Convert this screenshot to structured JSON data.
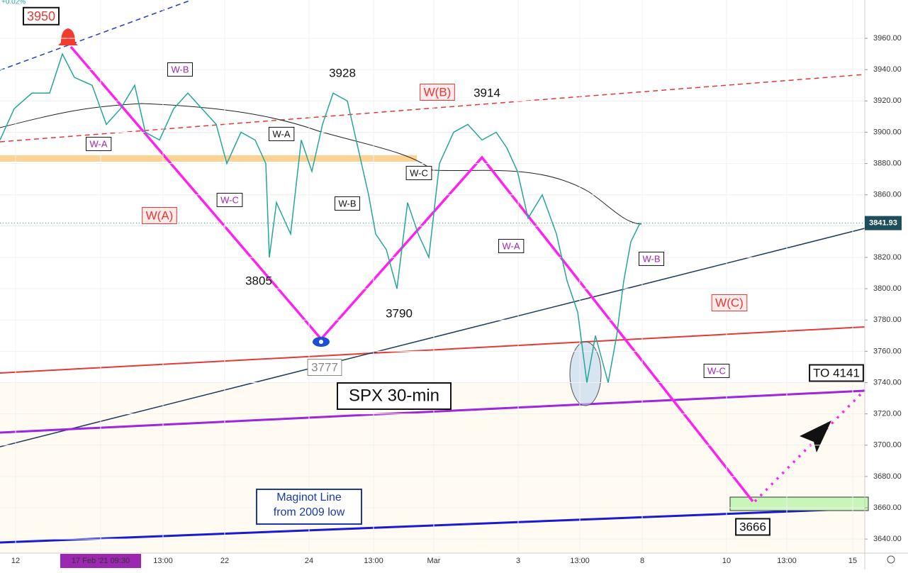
{
  "chart_data": {
    "type": "line",
    "title": "SPX 30-min",
    "top_note": "+0.02%",
    "ylim": [
      3631,
      3984.5
    ],
    "yticks": [
      {
        "value": 3640,
        "label": "3640.00"
      },
      {
        "value": 3660,
        "label": "3660.00"
      },
      {
        "value": 3680,
        "label": "3680.00"
      },
      {
        "value": 3700,
        "label": "3700.00"
      },
      {
        "value": 3720,
        "label": "3720.00"
      },
      {
        "value": 3740,
        "label": "3740.00"
      },
      {
        "value": 3760,
        "label": "3760.00"
      },
      {
        "value": 3780,
        "label": "3780.00"
      },
      {
        "value": 3800,
        "label": "3800.00"
      },
      {
        "value": 3820,
        "label": "3820.00"
      },
      {
        "value": 3840,
        "label": "3840.00"
      },
      {
        "value": 3860,
        "label": "3860.00"
      },
      {
        "value": 3880,
        "label": "3880.00"
      },
      {
        "value": 3900,
        "label": "3900.00"
      },
      {
        "value": 3920,
        "label": "3920.00"
      },
      {
        "value": 3940,
        "label": "3940.00"
      },
      {
        "value": 3960,
        "label": "3960.00"
      }
    ],
    "last_price": 3841.93,
    "xlim": [
      0,
      122
    ],
    "xticks": [
      {
        "value": 2.2,
        "label": "12"
      },
      {
        "value": 14.2,
        "label": "17 Feb '21  09:30"
      },
      {
        "value": 23,
        "label": "13:00"
      },
      {
        "value": 31.7,
        "label": "22"
      },
      {
        "value": 43.6,
        "label": "24"
      },
      {
        "value": 52.7,
        "label": "13:00"
      },
      {
        "value": 61.2,
        "label": "Mar"
      },
      {
        "value": 73.1,
        "label": "3"
      },
      {
        "value": 81.8,
        "label": "13:00"
      },
      {
        "value": 90.6,
        "label": "8"
      },
      {
        "value": 102.5,
        "label": "10"
      },
      {
        "value": 111,
        "label": "13:00"
      },
      {
        "value": 120.3,
        "label": "15"
      }
    ],
    "series": [
      {
        "name": "SPX",
        "color": "#26a69a",
        "x": [
          0,
          2,
          4.5,
          7,
          8.8,
          10.5,
          13,
          15,
          17,
          19,
          20.5,
          22.5,
          24.5,
          26.5,
          28.5,
          30.5,
          32,
          34,
          36,
          37.5,
          38,
          39,
          41,
          42.5,
          44,
          45.5,
          47,
          49,
          50.5,
          52,
          53,
          54.5,
          56,
          57.5,
          59,
          60.5,
          62,
          64,
          66,
          68,
          70,
          71.5,
          73,
          74.5,
          76.5,
          78.5,
          80,
          81.5,
          82.8,
          84,
          85.8,
          87,
          88,
          89,
          90.3
        ],
        "values": [
          3895,
          3915,
          3925,
          3925,
          3950,
          3935,
          3930,
          3905,
          3915,
          3930,
          3900,
          3895,
          3915,
          3925,
          3915,
          3905,
          3880,
          3900,
          3895,
          3880,
          3820,
          3855,
          3835,
          3895,
          3875,
          3905,
          3925,
          3920,
          3890,
          3860,
          3835,
          3825,
          3800,
          3855,
          3835,
          3820,
          3880,
          3900,
          3905,
          3895,
          3900,
          3890,
          3875,
          3845,
          3860,
          3835,
          3805,
          3785,
          3740,
          3770,
          3740,
          3770,
          3805,
          3830,
          3842
        ]
      }
    ],
    "annotations": [
      "3950",
      "W-B",
      "3928",
      "W(B)",
      "3914",
      "W-A",
      "W-A",
      "W-C",
      "W(A)",
      "W-B",
      "W-C",
      "3805",
      "3790",
      "3777",
      "W-A",
      "W-B",
      "W(C)",
      "W-C",
      "TO 4141",
      "3666",
      "Maginot Line",
      "from 2009 low"
    ]
  }
}
